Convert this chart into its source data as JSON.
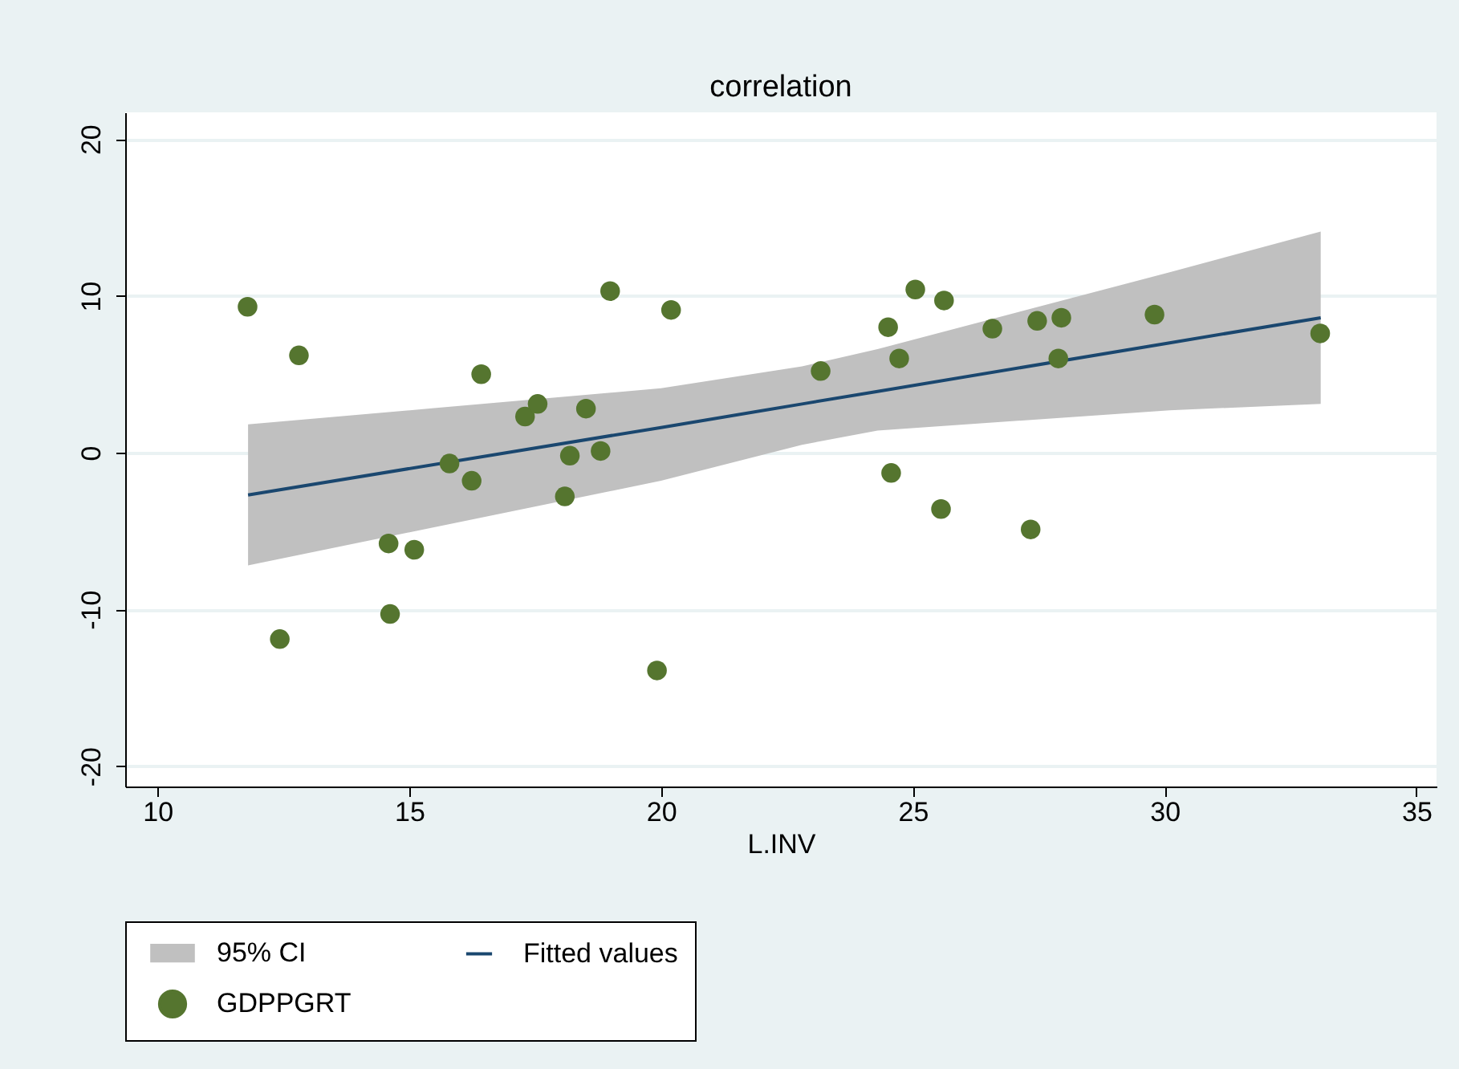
{
  "chart_data": {
    "type": "scatter",
    "title": "correlation",
    "xlabel": "L.INV",
    "xlim": [
      9.36,
      35.4
    ],
    "ylim": [
      -21.3,
      21.7
    ],
    "xticks": [
      10,
      15,
      20,
      25,
      30,
      35
    ],
    "yticks": [
      -20,
      -10,
      0,
      10,
      20
    ],
    "grid": "y",
    "legend": "bottom",
    "annotations": [
      "95% CI"
    ],
    "series": [
      {
        "type": "line",
        "name": "Fitted values",
        "color": "#1a476f",
        "x": [
          11.8,
          20,
          22.8,
          24.3,
          30.1,
          33.1
        ],
        "values": [
          -2.7,
          1.6,
          3.1,
          3.9,
          7.0,
          8.6
        ],
        "lower": [
          -7.2,
          -1.8,
          0.5,
          1.4,
          2.7,
          3.1
        ],
        "upper": [
          1.8,
          4.1,
          5.5,
          6.6,
          11.5,
          14.1
        ]
      },
      {
        "name": "GDPPGRT",
        "color": "#55752f",
        "marker": "circle",
        "x": [
          11.79,
          12.81,
          12.43,
          14.59,
          14.62,
          15.1,
          15.8,
          16.24,
          16.43,
          17.3,
          17.55,
          18.09,
          18.19,
          18.51,
          18.8,
          18.99,
          19.92,
          20.2,
          23.17,
          24.51,
          24.57,
          24.73,
          25.05,
          25.56,
          25.62,
          26.58,
          27.34,
          27.47,
          27.89,
          27.95,
          29.8,
          33.09
        ],
        "values": [
          9.3,
          6.2,
          -11.9,
          -5.8,
          -10.3,
          -6.2,
          -0.7,
          -1.8,
          5.0,
          2.3,
          3.1,
          -2.8,
          -0.2,
          2.8,
          0.1,
          10.3,
          -13.9,
          9.1,
          5.2,
          8.0,
          -1.3,
          6.0,
          10.4,
          -3.6,
          9.7,
          7.9,
          -4.9,
          8.4,
          6.0,
          8.6,
          8.8,
          7.6
        ]
      }
    ]
  }
}
